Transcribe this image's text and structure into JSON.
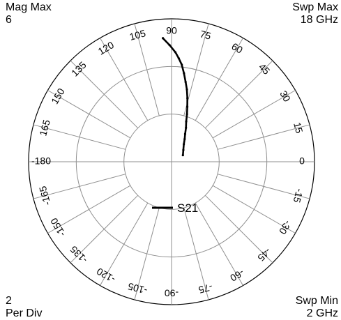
{
  "corners": {
    "top_left": [
      "Mag Max",
      "6"
    ],
    "top_right": [
      "Swp Max",
      "18  GHz"
    ],
    "bottom_left": [
      "2",
      "Per Div"
    ],
    "bottom_right": [
      "Swp Min",
      "2  GHz"
    ]
  },
  "chart_data": {
    "type": "polar",
    "magnitude_max": 6,
    "magnitude_per_div": 2,
    "magnitude_rings": [
      2,
      4,
      6
    ],
    "angle_ticks_deg": [
      0,
      15,
      30,
      45,
      60,
      75,
      90,
      105,
      120,
      135,
      150,
      165,
      -180,
      -165,
      -150,
      -135,
      -120,
      -105,
      -90,
      -75,
      -60,
      -45,
      -30,
      -15
    ],
    "angle_tick_labels": [
      "0",
      "15",
      "30",
      "45",
      "60",
      "75",
      "90",
      "105",
      "120",
      "135",
      "150",
      "165",
      "-180",
      "-165",
      "-150",
      "-135",
      "-120",
      "-105",
      "-90",
      "-75",
      "-60",
      "-45",
      "-30",
      "-15"
    ],
    "sweep_range_ghz": [
      2,
      18
    ],
    "legend": "S21",
    "series": [
      {
        "name": "S21",
        "points": [
          {
            "mag": 0.55,
            "angle": 30
          },
          {
            "mag": 0.7,
            "angle": 45
          },
          {
            "mag": 0.9,
            "angle": 55
          },
          {
            "mag": 1.1,
            "angle": 60
          },
          {
            "mag": 1.3,
            "angle": 64
          },
          {
            "mag": 1.55,
            "angle": 67
          },
          {
            "mag": 1.8,
            "angle": 70
          },
          {
            "mag": 2.1,
            "angle": 72
          },
          {
            "mag": 2.4,
            "angle": 74
          },
          {
            "mag": 2.75,
            "angle": 76
          },
          {
            "mag": 3.1,
            "angle": 78
          },
          {
            "mag": 3.4,
            "angle": 80
          },
          {
            "mag": 3.75,
            "angle": 82
          },
          {
            "mag": 4.1,
            "angle": 84
          },
          {
            "mag": 4.35,
            "angle": 86
          },
          {
            "mag": 4.6,
            "angle": 88
          },
          {
            "mag": 4.9,
            "angle": 91
          },
          {
            "mag": 5.2,
            "angle": 94
          }
        ]
      }
    ]
  }
}
